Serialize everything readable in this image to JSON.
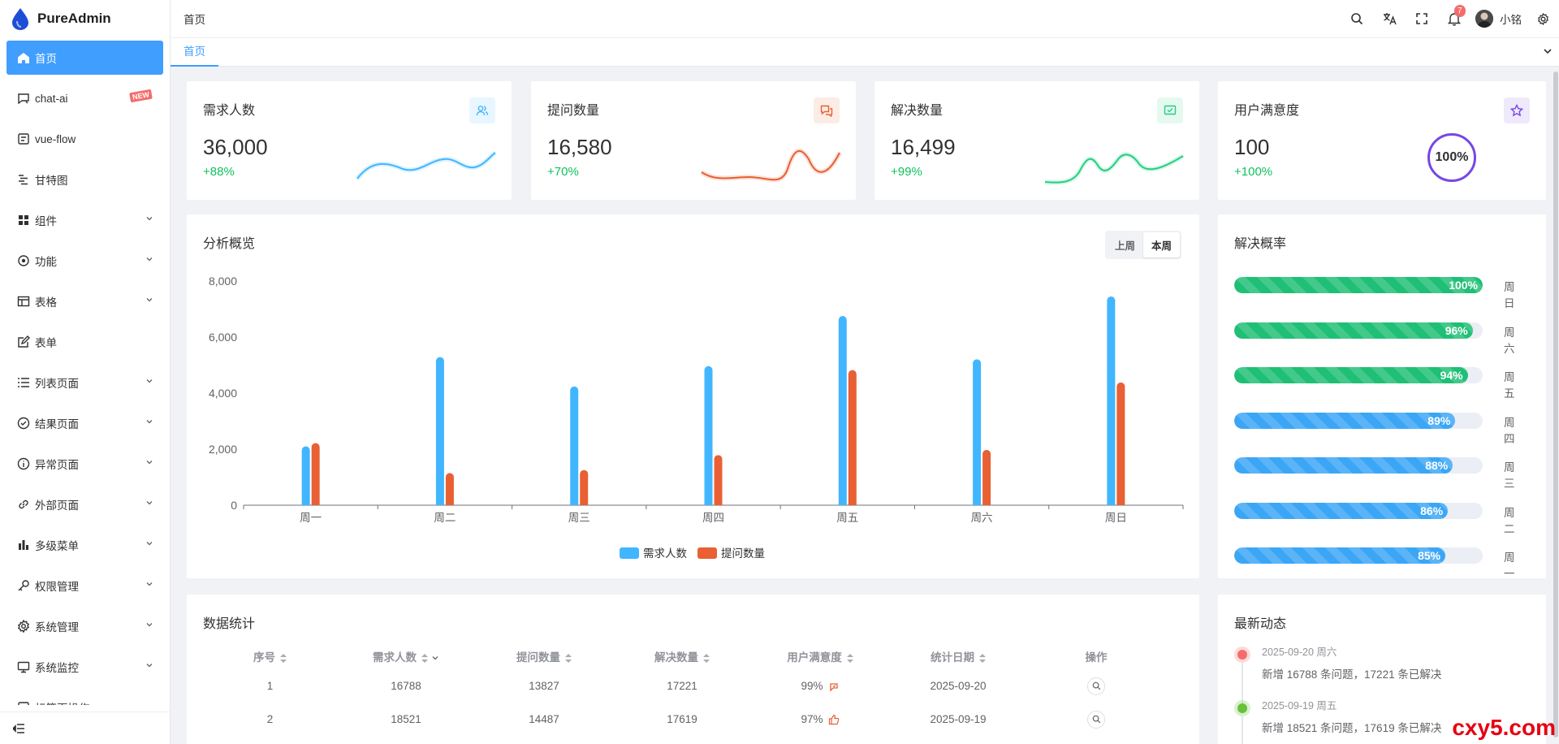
{
  "app": {
    "title": "PureAdmin"
  },
  "sidebar": {
    "items": [
      {
        "label": "首页",
        "icon": "home-icon"
      },
      {
        "label": "chat-ai",
        "icon": "chat-icon",
        "badge": "NEW"
      },
      {
        "label": "vue-flow",
        "icon": "flow-icon"
      },
      {
        "label": "甘特图",
        "icon": "gantt-icon"
      },
      {
        "label": "组件",
        "icon": "grid-icon"
      },
      {
        "label": "功能",
        "icon": "function-icon"
      },
      {
        "label": "表格",
        "icon": "table-icon"
      },
      {
        "label": "表单",
        "icon": "edit-icon"
      },
      {
        "label": "列表页面",
        "icon": "list-icon"
      },
      {
        "label": "结果页面",
        "icon": "check-circle-icon"
      },
      {
        "label": "异常页面",
        "icon": "info-icon"
      },
      {
        "label": "外部页面",
        "icon": "link-icon"
      },
      {
        "label": "多级菜单",
        "icon": "bar-chart-icon"
      },
      {
        "label": "权限管理",
        "icon": "key-icon"
      },
      {
        "label": "系统管理",
        "icon": "gear-icon"
      },
      {
        "label": "系统监控",
        "icon": "monitor-icon"
      },
      {
        "label": "标签页操作",
        "icon": "tag-icon"
      }
    ]
  },
  "header": {
    "breadcrumb": "首页",
    "notification_count": "7",
    "username": "小铭"
  },
  "tags": {
    "active": "首页"
  },
  "stats": [
    {
      "title": "需求人数",
      "value": "36,000",
      "change": "+88%",
      "color": "#41b6ff",
      "icon": "users-icon"
    },
    {
      "title": "提问数量",
      "value": "16,580",
      "change": "+70%",
      "color": "#e85f33",
      "icon": "question-icon"
    },
    {
      "title": "解决数量",
      "value": "16,499",
      "change": "+99%",
      "color": "#26ce83",
      "icon": "check-icon"
    },
    {
      "title": "用户满意度",
      "value": "100",
      "change": "+100%",
      "color": "#7846e5",
      "icon": "star-icon",
      "gauge": "100%"
    }
  ],
  "overview": {
    "title": "分析概览",
    "tabs": [
      "上周",
      "本周"
    ]
  },
  "chart_data": {
    "type": "bar",
    "title": "分析概览",
    "categories": [
      "周一",
      "周二",
      "周三",
      "周四",
      "周五",
      "周六",
      "周日"
    ],
    "series": [
      {
        "name": "需求人数",
        "color": "#41b6ff",
        "values": [
          2101,
          5288,
          4239,
          4962,
          6752,
          5208,
          7450
        ]
      },
      {
        "name": "提问数量",
        "color": "#e86033",
        "values": [
          2216,
          1148,
          1255,
          1788,
          4821,
          1973,
          4379
        ]
      }
    ],
    "ylim": [
      0,
      8000
    ],
    "yticks": [
      "0",
      "2,000",
      "4,000",
      "6,000",
      "8,000"
    ]
  },
  "solve_rate": {
    "title": "解决概率",
    "items": [
      {
        "day": "周日",
        "percent": 100,
        "label": "100%",
        "color": "green"
      },
      {
        "day": "周六",
        "percent": 96,
        "label": "96%",
        "color": "green"
      },
      {
        "day": "周五",
        "percent": 94,
        "label": "94%",
        "color": "green"
      },
      {
        "day": "周四",
        "percent": 89,
        "label": "89%",
        "color": "blue"
      },
      {
        "day": "周三",
        "percent": 88,
        "label": "88%",
        "color": "blue"
      },
      {
        "day": "周二",
        "percent": 86,
        "label": "86%",
        "color": "blue"
      },
      {
        "day": "周一",
        "percent": 85,
        "label": "85%",
        "color": "blue"
      }
    ]
  },
  "table": {
    "title": "数据统计",
    "columns": [
      "序号",
      "需求人数",
      "提问数量",
      "解决数量",
      "用户满意度",
      "统计日期",
      "操作"
    ],
    "rows": [
      {
        "index": "1",
        "demand": "16788",
        "questions": "13827",
        "solved": "17221",
        "satisfaction": "99%",
        "date": "2025-09-20"
      },
      {
        "index": "2",
        "demand": "18521",
        "questions": "14487",
        "solved": "17619",
        "satisfaction": "97%",
        "date": "2025-09-19"
      }
    ]
  },
  "news": {
    "title": "最新动态",
    "items": [
      {
        "time": "2025-09-20 周六",
        "text": "新增 16788 条问题，17221 条已解决",
        "color": "#f56c6c"
      },
      {
        "time": "2025-09-19 周五",
        "text": "新增 18521 条问题，17619 条已解决",
        "color": "#67c23a"
      }
    ]
  },
  "watermark": "cxy5.com"
}
